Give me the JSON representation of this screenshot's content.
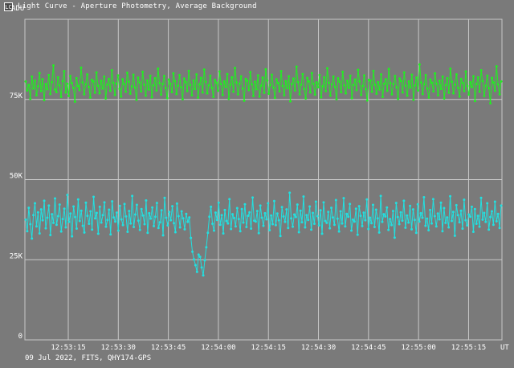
{
  "window": {
    "title": "Light Curve - Aperture Photometry, Average Background",
    "icon": "light-curve-app-icon",
    "icon_glyph": "LC"
  },
  "footer": {
    "text": "09 Jul 2022, FITS, QHY174-GPS"
  },
  "colors": {
    "background": "#7a7a7a",
    "grid": "#c8c8c8",
    "text": "#ffffff",
    "series_upper": "#22ee22",
    "series_lower": "#22e0e0"
  },
  "chart_data": {
    "type": "line",
    "title": "",
    "xlabel": "UT",
    "ylabel": "ADU",
    "y_ticks": [
      {
        "value": 0,
        "label": "0"
      },
      {
        "value": 25000,
        "label": "25K"
      },
      {
        "value": 50000,
        "label": "50K"
      },
      {
        "value": 75000,
        "label": "75K"
      }
    ],
    "ylim": [
      0,
      100000
    ],
    "x_ticks": [
      "12:53:15",
      "12:53:30",
      "12:53:45",
      "12:54:00",
      "12:54:15",
      "12:54:30",
      "12:54:45",
      "12:55:00",
      "12:55:15"
    ],
    "x_tick_seconds": [
      15,
      30,
      45,
      60,
      75,
      90,
      105,
      120,
      135
    ],
    "xlim_seconds": [
      2,
      145
    ],
    "grid": true,
    "legend": "none",
    "series": [
      {
        "values": [
          80600,
          77800,
          79500,
          75200,
          82100,
          78400,
          80900,
          76300,
          79100,
          83200,
          77600,
          81300,
          74800,
          79800,
          78200,
          82600,
          76700,
          80400,
          85600,
          78100,
          77300,
          81900,
          79400,
          75800,
          80700,
          83800,
          77200,
          79900,
          76100,
          82300,
          80100,
          78600,
          74300,
          81600,
          79200,
          77900,
          84900,
          80300,
          76600,
          79700,
          82800,
          78900,
          75600,
          81100,
          80600,
          77100,
          83400,
          79300,
          76900,
          80800,
          78400,
          82100,
          75300,
          79600,
          81400,
          77700,
          84100,
          80200,
          76400,
          79900,
          82500,
          78300,
          75900,
          81300,
          79800,
          77400,
          83300,
          80500,
          76800,
          79100,
          82700,
          78700,
          74900,
          81800,
          80300,
          77500,
          83600,
          79600,
          76200,
          80900,
          78100,
          82400,
          75700,
          79400,
          81600,
          77800,
          84600,
          80100,
          76500,
          79800,
          82300,
          78500,
          75400,
          81200,
          79900,
          77300,
          83100,
          80700,
          76700,
          79300,
          82600,
          78800,
          75100,
          81500,
          80400,
          77600,
          83900,
          79500,
          76300,
          80900,
          78300,
          82800,
          75600,
          79700,
          81700,
          77200,
          84300,
          80500,
          76900,
          79400,
          82400,
          78600,
          75800,
          81100,
          80200,
          77700,
          83700,
          79800,
          76400,
          80600,
          78900,
          82900,
          75200,
          79600,
          81900,
          77400,
          84800,
          80300,
          76600,
          79900,
          82200,
          78400,
          74600,
          81400,
          80800,
          77900,
          83500,
          79700,
          76100,
          80500,
          78200,
          82500,
          75900,
          79300,
          81800,
          77100,
          84400,
          80900,
          76800,
          79500,
          82700,
          78700,
          75500,
          81300,
          80100,
          77500,
          83800,
          79200,
          76300,
          80700,
          78500,
          82200,
          74400,
          79800,
          81500,
          77800,
          85200,
          80400,
          76600,
          79600,
          82900,
          78300,
          75300,
          81700,
          80600,
          77200,
          83200,
          79900,
          76500,
          80300,
          78800,
          82600,
          75700,
          79100,
          81900,
          77600,
          84700,
          80200,
          76200,
          79700,
          82100,
          78900,
          75100,
          81600,
          80500,
          77300,
          83600,
          79400,
          76900,
          80800,
          78600,
          82400,
          75400,
          79500,
          81200,
          77900,
          84200,
          80600,
          76400,
          79200,
          82500,
          78200,
          74700,
          81100,
          80900,
          77400,
          83900,
          79600,
          76800,
          80400,
          78100,
          82800,
          75800,
          79900,
          81300,
          77700,
          84500,
          80100,
          76600,
          79800,
          82300,
          78800,
          75200,
          81500,
          80700,
          77200,
          83400,
          79300,
          76200,
          80600,
          78700,
          82700,
          74900,
          79400,
          81800,
          77800,
          85900,
          80300,
          76700,
          79700,
          82600,
          78400,
          75600,
          81200,
          80200,
          77500,
          83100,
          79900,
          76300,
          80800,
          78300,
          82100,
          75300,
          79500,
          81600,
          77100,
          84600,
          80500,
          76900,
          79600,
          82800,
          78600,
          75900,
          81400,
          80100,
          77600,
          83700,
          79200,
          76500,
          80400,
          78900,
          82200,
          74500,
          79800,
          81900,
          77400,
          84100,
          80700,
          76100,
          79300,
          82400,
          78500,
          73800,
          81700,
          80300,
          77700,
          85300,
          79700,
          76600,
          80600
        ],
        "color": "#22ee22"
      },
      {
        "values": [
          37500,
          33900,
          41200,
          36100,
          31600,
          38900,
          42600,
          35400,
          39800,
          33200,
          40700,
          37300,
          43400,
          34800,
          38100,
          41900,
          32700,
          39200,
          36500,
          44100,
          35900,
          38600,
          42200,
          33800,
          37700,
          40900,
          35100,
          45200,
          36800,
          39400,
          32300,
          41600,
          38300,
          34700,
          43800,
          37100,
          40300,
          35600,
          33500,
          42800,
          38700,
          36200,
          40100,
          34400,
          44600,
          37900,
          39600,
          33100,
          41500,
          36600,
          38900,
          42900,
          35300,
          37400,
          40600,
          32900,
          43200,
          38200,
          36900,
          39700,
          34100,
          41800,
          37600,
          35800,
          42400,
          38500,
          33700,
          40200,
          36300,
          44900,
          35200,
          39100,
          42100,
          37200,
          34300,
          40800,
          38800,
          36100,
          43500,
          33400,
          39500,
          37800,
          41300,
          35500,
          38400,
          42700,
          34900,
          36700,
          40400,
          32600,
          44300,
          38100,
          35700,
          39900,
          37300,
          41700,
          36400,
          33600,
          42500,
          38600,
          35100,
          40100,
          37900,
          34500,
          39300,
          36800,
          38200,
          31800,
          27500,
          25100,
          23300,
          21200,
          26600,
          25900,
          22600,
          20100,
          24800,
          28900,
          33400,
          38400,
          41500,
          36200,
          34100,
          39700,
          37400,
          42800,
          35900,
          38900,
          33200,
          40500,
          37100,
          36300,
          43900,
          34600,
          39200,
          38000,
          35400,
          41100,
          37700,
          33900,
          40800,
          36600,
          42300,
          35200,
          38700,
          39800,
          34700,
          44400,
          37200,
          36900,
          40200,
          33300,
          41900,
          38100,
          35600,
          39500,
          37600,
          42600,
          34200,
          38800,
          36100,
          43300,
          35800,
          39400,
          37300,
          32400,
          41400,
          38500,
          36800,
          40700,
          34900,
          45900,
          37900,
          35300,
          39100,
          38300,
          42200,
          33600,
          40300,
          36700,
          44700,
          35100,
          38900,
          37400,
          41600,
          34400,
          39600,
          36200,
          43100,
          38600,
          35700,
          40400,
          33100,
          42900,
          37100,
          36500,
          39900,
          34800,
          41200,
          38200,
          35900,
          43600,
          37800,
          33800,
          40100,
          36300,
          44200,
          35400,
          39300,
          38400,
          42400,
          34100,
          37500,
          36900,
          40900,
          32800,
          41700,
          38700,
          35500,
          39700,
          37300,
          43800,
          34600,
          38100,
          36400,
          42100,
          35200,
          40600,
          37900,
          33500,
          44900,
          36800,
          39200,
          38500,
          41300,
          34300,
          37700,
          35800,
          40200,
          31900,
          42700,
          38300,
          36100,
          39800,
          37200,
          43400,
          35000,
          38800,
          36600,
          41800,
          34500,
          40700,
          37400,
          33400,
          42300,
          36900,
          39500,
          38100,
          44500,
          35600,
          37800,
          34200,
          40500,
          36300,
          43900,
          38600,
          35400,
          39400,
          37600,
          42800,
          33900,
          41100,
          36500,
          38200,
          35100,
          44800,
          37100,
          39900,
          32500,
          42000,
          38900,
          36700,
          40300,
          34700,
          43700,
          37300,
          35700,
          39100,
          38400,
          41500,
          33700,
          40800,
          36200,
          38700,
          35300,
          44300,
          37500,
          39600,
          36800,
          42600,
          34400,
          38300,
          40100,
          35900,
          43100,
          37000,
          39300,
          34900,
          41900
        ],
        "color": "#22e0e0"
      }
    ]
  }
}
